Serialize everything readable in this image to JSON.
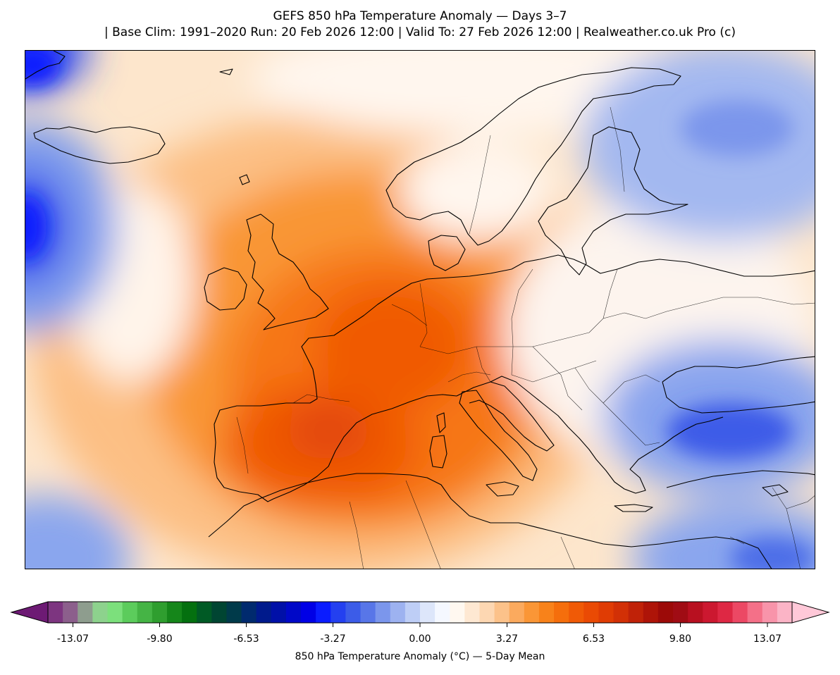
{
  "title": {
    "line1": "GEFS 850 hPa Temperature Anomaly — Days 3–7",
    "line2": "| Base Clim: 1991–2020 Run: 20 Feb 2026 12:00 | Valid To: 27 Feb 2026 12:00 | Realweather.co.uk Pro (c)"
  },
  "map": {
    "field": "850 hPa temperature anomaly, 5-day mean",
    "region": "Europe, North Atlantic and Mediterranean"
  },
  "colorbar": {
    "label": "850 hPa Temperature Anomaly (°C) — 5-Day Mean",
    "ticks": [
      "-13.07",
      "-9.80",
      "-6.53",
      "-3.27",
      "0.00",
      "3.27",
      "6.53",
      "9.80",
      "13.07"
    ],
    "colors": [
      "#6d1a74",
      "#7d3580",
      "#8c5f8c",
      "#8e9d8e",
      "#8dd28d",
      "#7ce07c",
      "#5ccc5c",
      "#45b445",
      "#2f9e2f",
      "#15861a",
      "#04700f",
      "#005a25",
      "#004532",
      "#003a4a",
      "#002a6e",
      "#001a8c",
      "#0010a8",
      "#0008c8",
      "#0000e6",
      "#0a1cff",
      "#2440f0",
      "#3c5ce8",
      "#5876e8",
      "#7b96ec",
      "#9db2f0",
      "#becef6",
      "#dde6fa",
      "#f5f8ff",
      "#fff8f0",
      "#fee8d2",
      "#fdd7b2",
      "#fcc28a",
      "#fbaa5e",
      "#fa9636",
      "#f8821a",
      "#f56e0c",
      "#f05a06",
      "#ea4a04",
      "#e03c04",
      "#d23006",
      "#c02208",
      "#ae1408",
      "#9c0a08",
      "#a00c14",
      "#b81020",
      "#cc1830",
      "#de2844",
      "#ec4864",
      "#f47088",
      "#f894aa",
      "#fbb4c6",
      "#ffc8d8"
    ],
    "extend": "both"
  }
}
